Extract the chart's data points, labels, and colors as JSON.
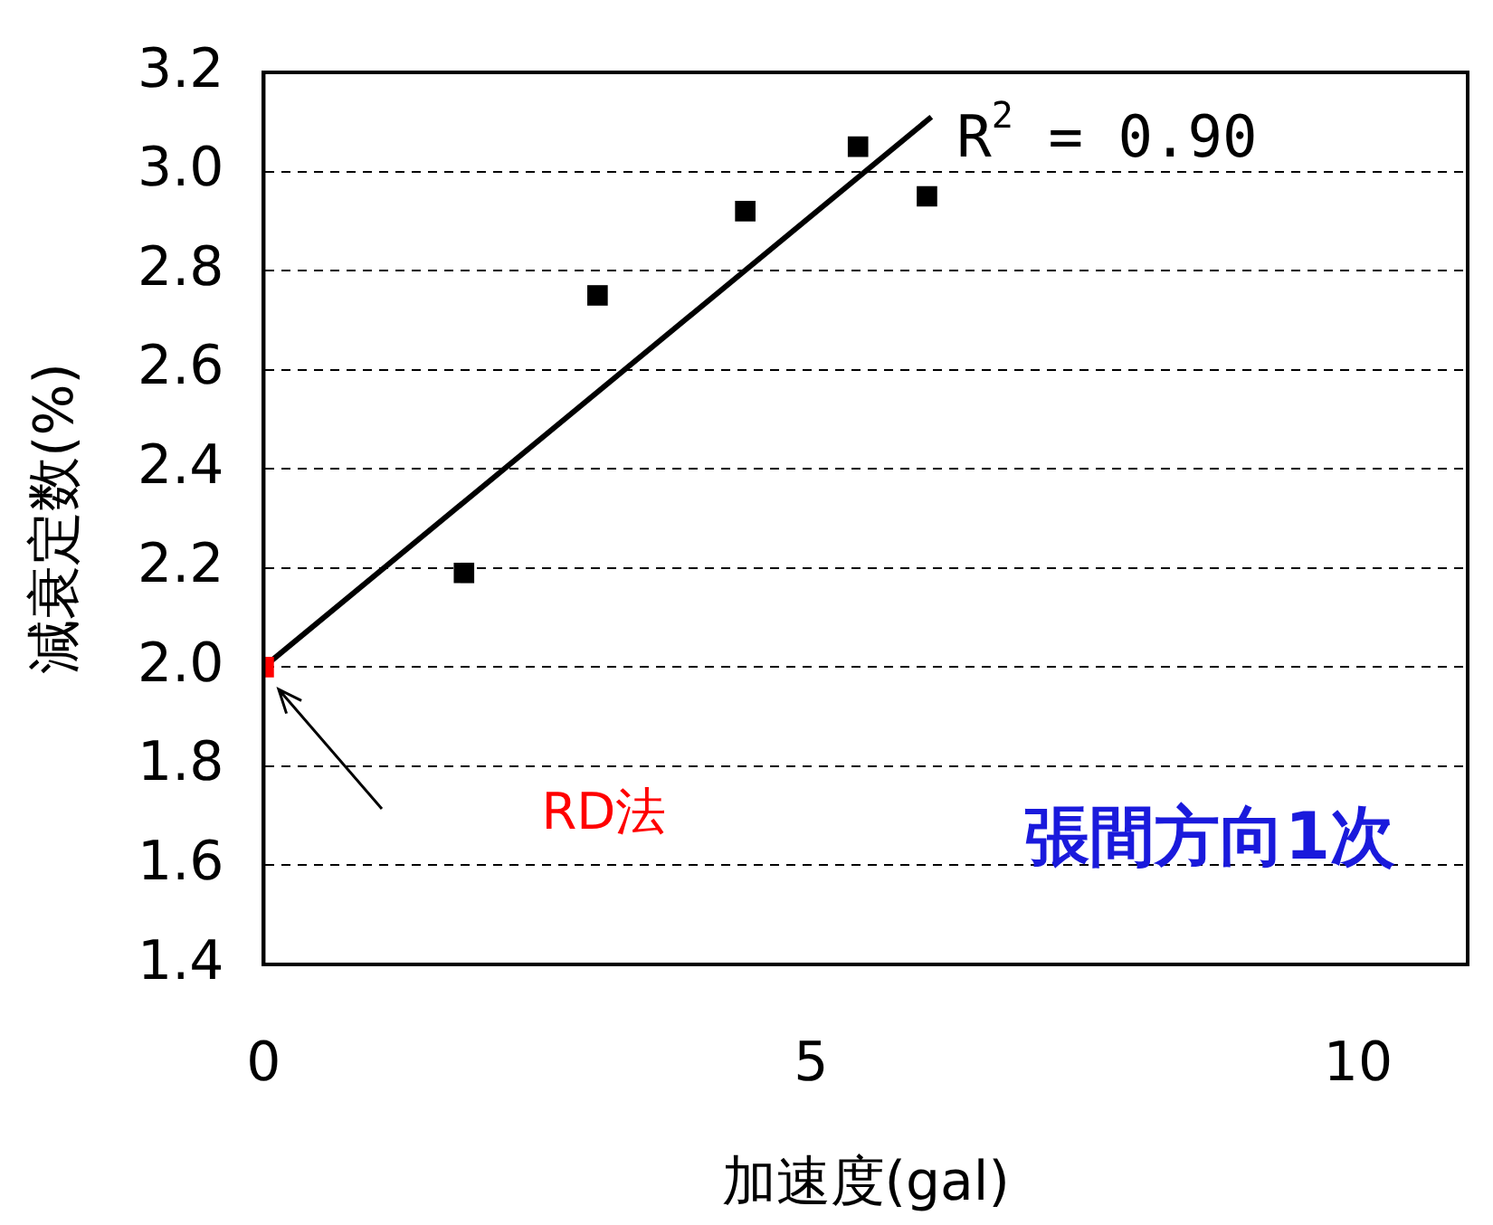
{
  "chart_data": {
    "type": "scatter",
    "xlabel": "加速度(gal)",
    "ylabel": "減衰定数(%)",
    "xlim": [
      0,
      11
    ],
    "xticks": [
      0,
      5,
      10
    ],
    "ylim": [
      1.4,
      3.2
    ],
    "yticks": [
      1.4,
      1.6,
      1.8,
      {
        "value": 2,
        "label": "2.0"
      },
      2.2,
      2.4,
      2.6,
      2.8,
      {
        "value": 3,
        "label": "3.0"
      },
      3.2
    ],
    "grid": "y",
    "legend": false,
    "marker": "square",
    "series": [
      {
        "color": "#000000",
        "x": [
          1.83,
          3.05,
          4.4,
          5.43,
          6.06
        ],
        "values": [
          2.19,
          2.75,
          2.92,
          3.05,
          2.95
        ]
      },
      {
        "color": "#ff0000",
        "x": [
          0
        ],
        "values": [
          2.0
        ]
      },
      {
        "type": "line",
        "color": "#000000",
        "marker": "none",
        "x": [
          0,
          6.1
        ],
        "values": [
          2.0,
          3.11
        ]
      }
    ],
    "annotations": [
      {
        "text": "R$^{2}$ = 0.90",
        "x": 6.1,
        "y": 3.11
      },
      "RD法",
      "張間方向1次"
    ]
  }
}
